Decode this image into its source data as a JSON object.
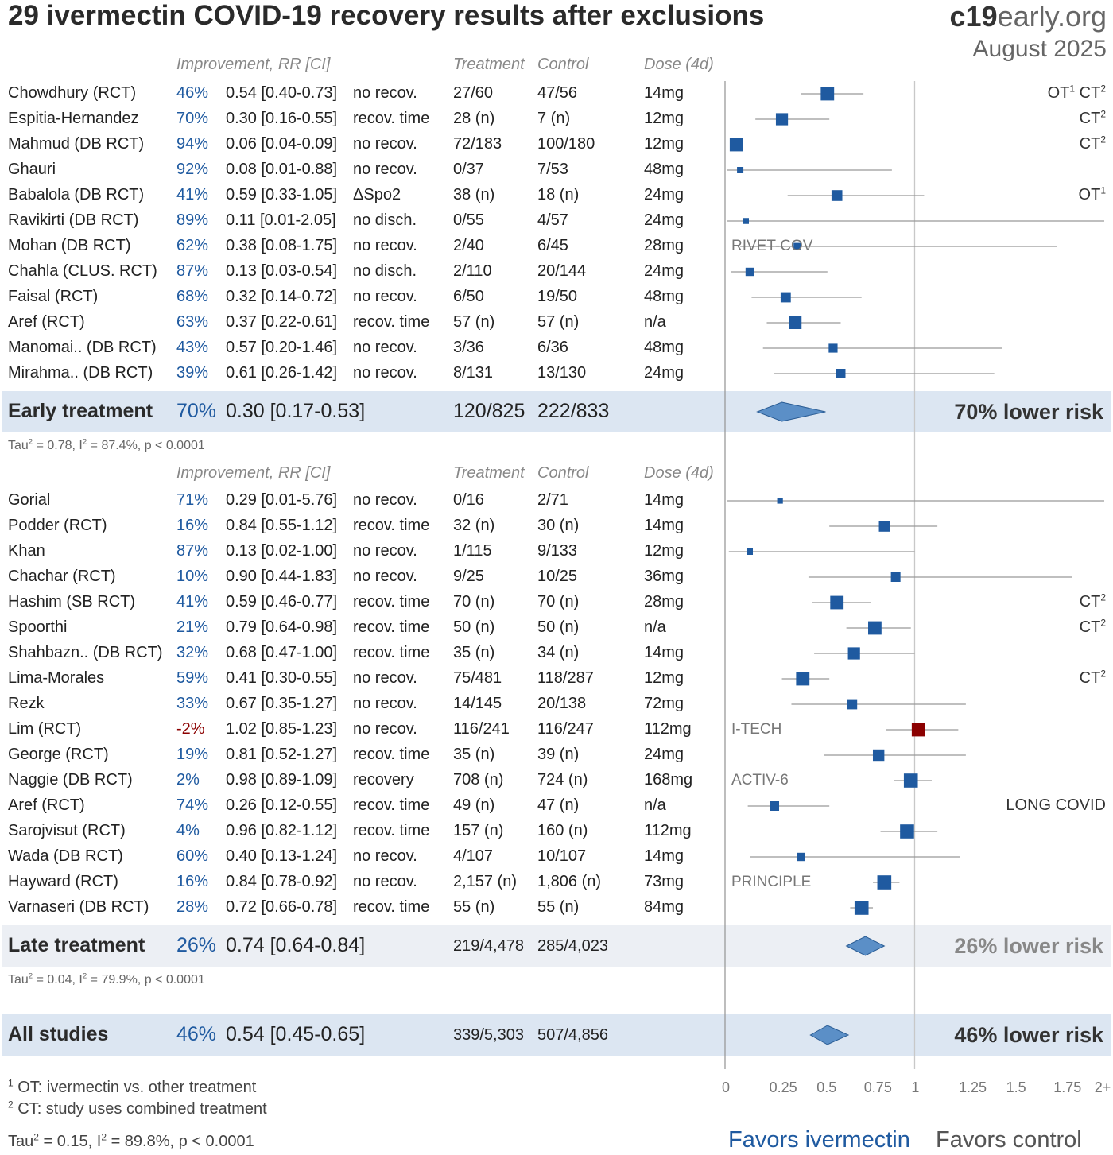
{
  "title": "29 ivermectin COVID-19 recovery results after exclusions",
  "brand": {
    "bold": "c19",
    "rest": "early.org"
  },
  "date": "August 2025",
  "headers": {
    "improvement": "Improvement, RR [CI]",
    "treatment": "Treatment",
    "control": "Control",
    "dose": "Dose (4d)"
  },
  "early": {
    "rows": [
      {
        "name": "Chowdhury (RCT)",
        "imp": "46%",
        "rr": "0.54 [0.40-0.73]",
        "outcome": "no recov.",
        "treatment": "27/60",
        "control": "47/56",
        "dose": "14mg",
        "tag": "",
        "flags": "OT¹ CT²"
      },
      {
        "name": "Espitia-Hernandez",
        "imp": "70%",
        "rr": "0.30 [0.16-0.55]",
        "outcome": "recov. time",
        "treatment": "28 (n)",
        "control": "7 (n)",
        "dose": "12mg",
        "tag": "",
        "flags": "CT²"
      },
      {
        "name": "Mahmud (DB RCT)",
        "imp": "94%",
        "rr": "0.06 [0.04-0.09]",
        "outcome": "no recov.",
        "treatment": "72/183",
        "control": "100/180",
        "dose": "12mg",
        "tag": "",
        "flags": "CT²"
      },
      {
        "name": "Ghauri",
        "imp": "92%",
        "rr": "0.08 [0.01-0.88]",
        "outcome": "no recov.",
        "treatment": "0/37",
        "control": "7/53",
        "dose": "48mg",
        "tag": "",
        "flags": ""
      },
      {
        "name": "Babalola (DB RCT)",
        "imp": "41%",
        "rr": "0.59 [0.33-1.05]",
        "outcome": "ΔSpo2",
        "treatment": "38 (n)",
        "control": "18 (n)",
        "dose": "24mg",
        "tag": "",
        "flags": "OT¹"
      },
      {
        "name": "Ravikirti (DB RCT)",
        "imp": "89%",
        "rr": "0.11 [0.01-2.05]",
        "outcome": "no disch.",
        "treatment": "0/55",
        "control": "4/57",
        "dose": "24mg",
        "tag": "",
        "flags": ""
      },
      {
        "name": "Mohan (DB RCT)",
        "imp": "62%",
        "rr": "0.38 [0.08-1.75]",
        "outcome": "no recov.",
        "treatment": "2/40",
        "control": "6/45",
        "dose": "28mg",
        "tag": "RIVET-COV",
        "flags": ""
      },
      {
        "name": "Chahla (CLUS. RCT)",
        "imp": "87%",
        "rr": "0.13 [0.03-0.54]",
        "outcome": "no disch.",
        "treatment": "2/110",
        "control": "20/144",
        "dose": "24mg",
        "tag": "",
        "flags": ""
      },
      {
        "name": "Faisal (RCT)",
        "imp": "68%",
        "rr": "0.32 [0.14-0.72]",
        "outcome": "no recov.",
        "treatment": "6/50",
        "control": "19/50",
        "dose": "48mg",
        "tag": "",
        "flags": ""
      },
      {
        "name": "Aref (RCT)",
        "imp": "63%",
        "rr": "0.37 [0.22-0.61]",
        "outcome": "recov. time",
        "treatment": "57 (n)",
        "control": "57 (n)",
        "dose": "n/a",
        "tag": "",
        "flags": ""
      },
      {
        "name": "Manomai.. (DB RCT)",
        "imp": "43%",
        "rr": "0.57 [0.20-1.46]",
        "outcome": "no recov.",
        "treatment": "3/36",
        "control": "6/36",
        "dose": "48mg",
        "tag": "",
        "flags": ""
      },
      {
        "name": "Mirahma.. (DB RCT)",
        "imp": "39%",
        "rr": "0.61 [0.26-1.42]",
        "outcome": "no recov.",
        "treatment": "8/131",
        "control": "13/130",
        "dose": "24mg",
        "tag": "",
        "flags": ""
      }
    ],
    "summary": {
      "name": "Early treatment",
      "imp": "70%",
      "rr": "0.30 [0.17-0.53]",
      "treatment": "120/825",
      "control": "222/833",
      "lower_risk": "70% lower risk"
    },
    "stats": "Tau² = 0.78, I² = 87.4%, p < 0.0001"
  },
  "late": {
    "rows": [
      {
        "name": "Gorial",
        "imp": "71%",
        "rr": "0.29 [0.01-5.76]",
        "outcome": "no recov.",
        "treatment": "0/16",
        "control": "2/71",
        "dose": "14mg",
        "tag": "",
        "flags": ""
      },
      {
        "name": "Podder (RCT)",
        "imp": "16%",
        "rr": "0.84 [0.55-1.12]",
        "outcome": "recov. time",
        "treatment": "32 (n)",
        "control": "30 (n)",
        "dose": "14mg",
        "tag": "",
        "flags": ""
      },
      {
        "name": "Khan",
        "imp": "87%",
        "rr": "0.13 [0.02-1.00]",
        "outcome": "no recov.",
        "treatment": "1/115",
        "control": "9/133",
        "dose": "12mg",
        "tag": "",
        "flags": ""
      },
      {
        "name": "Chachar (RCT)",
        "imp": "10%",
        "rr": "0.90 [0.44-1.83]",
        "outcome": "no recov.",
        "treatment": "9/25",
        "control": "10/25",
        "dose": "36mg",
        "tag": "",
        "flags": ""
      },
      {
        "name": "Hashim (SB RCT)",
        "imp": "41%",
        "rr": "0.59 [0.46-0.77]",
        "outcome": "recov. time",
        "treatment": "70 (n)",
        "control": "70 (n)",
        "dose": "28mg",
        "tag": "",
        "flags": "CT²"
      },
      {
        "name": "Spoorthi",
        "imp": "21%",
        "rr": "0.79 [0.64-0.98]",
        "outcome": "recov. time",
        "treatment": "50 (n)",
        "control": "50 (n)",
        "dose": "n/a",
        "tag": "",
        "flags": "CT²"
      },
      {
        "name": "Shahbazn.. (DB RCT)",
        "imp": "32%",
        "rr": "0.68 [0.47-1.00]",
        "outcome": "recov. time",
        "treatment": "35 (n)",
        "control": "34 (n)",
        "dose": "14mg",
        "tag": "",
        "flags": ""
      },
      {
        "name": "Lima-Morales",
        "imp": "59%",
        "rr": "0.41 [0.30-0.55]",
        "outcome": "no recov.",
        "treatment": "75/481",
        "control": "118/287",
        "dose": "12mg",
        "tag": "",
        "flags": "CT²"
      },
      {
        "name": "Rezk",
        "imp": "33%",
        "rr": "0.67 [0.35-1.27]",
        "outcome": "no recov.",
        "treatment": "14/145",
        "control": "20/138",
        "dose": "72mg",
        "tag": "",
        "flags": ""
      },
      {
        "name": "Lim (RCT)",
        "imp": "-2%",
        "rr": "1.02 [0.85-1.23]",
        "outcome": "no recov.",
        "treatment": "116/241",
        "control": "116/247",
        "dose": "112mg",
        "tag": "I-TECH",
        "flags": ""
      },
      {
        "name": "George (RCT)",
        "imp": "19%",
        "rr": "0.81 [0.52-1.27]",
        "outcome": "recov. time",
        "treatment": "35 (n)",
        "control": "39 (n)",
        "dose": "24mg",
        "tag": "",
        "flags": ""
      },
      {
        "name": "Naggie (DB RCT)",
        "imp": "2%",
        "rr": "0.98 [0.89-1.09]",
        "outcome": "recovery",
        "treatment": "708 (n)",
        "control": "724 (n)",
        "dose": "168mg",
        "tag": "ACTIV-6",
        "flags": ""
      },
      {
        "name": "Aref (RCT)",
        "imp": "74%",
        "rr": "0.26 [0.12-0.55]",
        "outcome": "recov. time",
        "treatment": "49 (n)",
        "control": "47 (n)",
        "dose": "n/a",
        "tag": "",
        "flags": "LONG COVID"
      },
      {
        "name": "Sarojvisut (RCT)",
        "imp": "4%",
        "rr": "0.96 [0.82-1.12]",
        "outcome": "recov. time",
        "treatment": "157 (n)",
        "control": "160 (n)",
        "dose": "112mg",
        "tag": "",
        "flags": ""
      },
      {
        "name": "Wada (DB RCT)",
        "imp": "60%",
        "rr": "0.40 [0.13-1.24]",
        "outcome": "no recov.",
        "treatment": "4/107",
        "control": "10/107",
        "dose": "14mg",
        "tag": "",
        "flags": ""
      },
      {
        "name": "Hayward (RCT)",
        "imp": "16%",
        "rr": "0.84 [0.78-0.92]",
        "outcome": "no recov.",
        "treatment": "2,157 (n)",
        "control": "1,806 (n)",
        "dose": "73mg",
        "tag": "PRINCIPLE",
        "flags": ""
      },
      {
        "name": "Varnaseri (DB RCT)",
        "imp": "28%",
        "rr": "0.72 [0.66-0.78]",
        "outcome": "recov. time",
        "treatment": "55 (n)",
        "control": "55 (n)",
        "dose": "84mg",
        "tag": "",
        "flags": ""
      }
    ],
    "summary": {
      "name": "Late treatment",
      "imp": "26%",
      "rr": "0.74 [0.64-0.84]",
      "treatment": "219/4,478",
      "control": "285/4,023",
      "lower_risk": "26% lower risk"
    },
    "stats": "Tau² = 0.04, I² = 79.9%, p < 0.0001"
  },
  "all": {
    "summary": {
      "name": "All studies",
      "imp": "46%",
      "rr": "0.54 [0.45-0.65]",
      "treatment": "339/5,303",
      "control": "507/4,856",
      "lower_risk": "46% lower risk"
    }
  },
  "footnotes": [
    "¹ OT: ivermectin vs. other treatment",
    "² CT: study uses combined treatment"
  ],
  "overall_stats": "Tau² = 0.15, I² = 89.8%, p < 0.0001",
  "favors": {
    "left": "Favors ivermectin",
    "right": "Favors control"
  },
  "axis_ticks": [
    "0",
    "0.25",
    "0.5",
    "0.75",
    "1",
    "1.25",
    "1.5",
    "1.75",
    "2+"
  ],
  "chart_data": {
    "type": "forest",
    "xlim": [
      0,
      2
    ],
    "xlabel": "",
    "colors": {
      "point": "#1f5aa0",
      "harm_point": "#8b0000",
      "diamond": "#5b8fc7",
      "ci": "#999999"
    },
    "early": [
      {
        "rr": 0.54,
        "lo": 0.4,
        "hi": 0.73,
        "w": 0.8
      },
      {
        "rr": 0.3,
        "lo": 0.16,
        "hi": 0.55,
        "w": 0.7
      },
      {
        "rr": 0.06,
        "lo": 0.04,
        "hi": 0.09,
        "w": 0.8
      },
      {
        "rr": 0.08,
        "lo": 0.01,
        "hi": 0.88,
        "w": 0.25
      },
      {
        "rr": 0.59,
        "lo": 0.33,
        "hi": 1.05,
        "w": 0.6
      },
      {
        "rr": 0.11,
        "lo": 0.01,
        "hi": 2.05,
        "w": 0.22
      },
      {
        "rr": 0.38,
        "lo": 0.08,
        "hi": 1.75,
        "w": 0.3
      },
      {
        "rr": 0.13,
        "lo": 0.03,
        "hi": 0.54,
        "w": 0.4
      },
      {
        "rr": 0.32,
        "lo": 0.14,
        "hi": 0.72,
        "w": 0.55
      },
      {
        "rr": 0.37,
        "lo": 0.22,
        "hi": 0.61,
        "w": 0.75
      },
      {
        "rr": 0.57,
        "lo": 0.2,
        "hi": 1.46,
        "w": 0.45
      },
      {
        "rr": 0.61,
        "lo": 0.26,
        "hi": 1.42,
        "w": 0.5
      }
    ],
    "early_summary": {
      "rr": 0.3,
      "lo": 0.17,
      "hi": 0.53
    },
    "late": [
      {
        "rr": 0.29,
        "lo": 0.01,
        "hi": 5.76,
        "w": 0.2
      },
      {
        "rr": 0.84,
        "lo": 0.55,
        "hi": 1.12,
        "w": 0.6
      },
      {
        "rr": 0.13,
        "lo": 0.02,
        "hi": 1.0,
        "w": 0.25
      },
      {
        "rr": 0.9,
        "lo": 0.44,
        "hi": 1.83,
        "w": 0.5
      },
      {
        "rr": 0.59,
        "lo": 0.46,
        "hi": 0.77,
        "w": 0.8
      },
      {
        "rr": 0.79,
        "lo": 0.64,
        "hi": 0.98,
        "w": 0.8
      },
      {
        "rr": 0.68,
        "lo": 0.47,
        "hi": 1.0,
        "w": 0.7
      },
      {
        "rr": 0.41,
        "lo": 0.3,
        "hi": 0.55,
        "w": 0.8
      },
      {
        "rr": 0.67,
        "lo": 0.35,
        "hi": 1.27,
        "w": 0.55
      },
      {
        "rr": 1.02,
        "lo": 0.85,
        "hi": 1.23,
        "w": 0.8,
        "harm": true
      },
      {
        "rr": 0.81,
        "lo": 0.52,
        "hi": 1.27,
        "w": 0.65
      },
      {
        "rr": 0.98,
        "lo": 0.89,
        "hi": 1.09,
        "w": 0.85
      },
      {
        "rr": 0.26,
        "lo": 0.12,
        "hi": 0.55,
        "w": 0.5
      },
      {
        "rr": 0.96,
        "lo": 0.82,
        "hi": 1.12,
        "w": 0.85
      },
      {
        "rr": 0.4,
        "lo": 0.13,
        "hi": 1.24,
        "w": 0.4
      },
      {
        "rr": 0.84,
        "lo": 0.78,
        "hi": 0.92,
        "w": 0.85
      },
      {
        "rr": 0.72,
        "lo": 0.66,
        "hi": 0.78,
        "w": 0.85
      }
    ],
    "late_summary": {
      "rr": 0.74,
      "lo": 0.64,
      "hi": 0.84
    },
    "all_summary": {
      "rr": 0.54,
      "lo": 0.45,
      "hi": 0.65
    }
  }
}
